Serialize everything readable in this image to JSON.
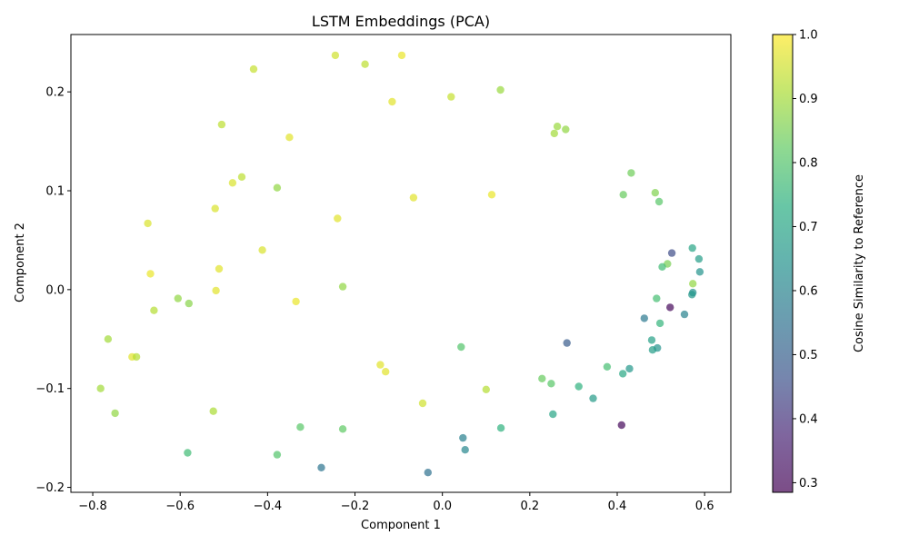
{
  "chart_data": {
    "type": "scatter",
    "title": "LSTM Embeddings (PCA)",
    "xlabel": "Component 1",
    "ylabel": "Component 2",
    "xlim": [
      -0.85,
      0.66
    ],
    "ylim": [
      -0.205,
      0.258
    ],
    "xticks": [
      -0.8,
      -0.6,
      -0.4,
      -0.2,
      0.0,
      0.2,
      0.4,
      0.6
    ],
    "xtick_labels": [
      "−0.8",
      "−0.6",
      "−0.4",
      "−0.2",
      "0.0",
      "0.2",
      "0.4",
      "0.6"
    ],
    "yticks": [
      -0.2,
      -0.1,
      0.0,
      0.1,
      0.2
    ],
    "ytick_labels": [
      "−0.2",
      "−0.1",
      "0.0",
      "0.1",
      "0.2"
    ],
    "grid": false,
    "alpha": 0.7,
    "colormap": "viridis",
    "colorbar": {
      "label": "Cosine Similarity to Reference",
      "range": [
        0.285,
        1.0
      ],
      "ticks": [
        0.3,
        0.4,
        0.5,
        0.6,
        0.7,
        0.8,
        0.9,
        1.0
      ],
      "tick_labels": [
        "0.3",
        "0.4",
        "0.5",
        "0.6",
        "0.7",
        "0.8",
        "0.9",
        "1.0"
      ]
    },
    "points": [
      {
        "x": -0.245,
        "y": 0.237,
        "c": 0.95
      },
      {
        "x": -0.093,
        "y": 0.237,
        "c": 0.98
      },
      {
        "x": -0.432,
        "y": 0.223,
        "c": 0.94
      },
      {
        "x": -0.177,
        "y": 0.228,
        "c": 0.93
      },
      {
        "x": 0.02,
        "y": 0.195,
        "c": 0.94
      },
      {
        "x": 0.133,
        "y": 0.202,
        "c": 0.89
      },
      {
        "x": -0.115,
        "y": 0.19,
        "c": 0.97
      },
      {
        "x": -0.505,
        "y": 0.167,
        "c": 0.93
      },
      {
        "x": -0.35,
        "y": 0.154,
        "c": 0.97
      },
      {
        "x": 0.263,
        "y": 0.165,
        "c": 0.89
      },
      {
        "x": 0.282,
        "y": 0.162,
        "c": 0.88
      },
      {
        "x": 0.256,
        "y": 0.158,
        "c": 0.9
      },
      {
        "x": -0.459,
        "y": 0.114,
        "c": 0.93
      },
      {
        "x": -0.48,
        "y": 0.108,
        "c": 0.96
      },
      {
        "x": -0.378,
        "y": 0.103,
        "c": 0.88
      },
      {
        "x": 0.432,
        "y": 0.118,
        "c": 0.84
      },
      {
        "x": -0.066,
        "y": 0.093,
        "c": 0.97
      },
      {
        "x": 0.113,
        "y": 0.096,
        "c": 0.98
      },
      {
        "x": 0.414,
        "y": 0.096,
        "c": 0.83
      },
      {
        "x": 0.487,
        "y": 0.098,
        "c": 0.86
      },
      {
        "x": 0.496,
        "y": 0.089,
        "c": 0.81
      },
      {
        "x": -0.52,
        "y": 0.082,
        "c": 0.96
      },
      {
        "x": -0.24,
        "y": 0.072,
        "c": 0.97
      },
      {
        "x": -0.674,
        "y": 0.067,
        "c": 0.96
      },
      {
        "x": -0.412,
        "y": 0.04,
        "c": 0.96
      },
      {
        "x": 0.572,
        "y": 0.042,
        "c": 0.7
      },
      {
        "x": 0.525,
        "y": 0.037,
        "c": 0.45
      },
      {
        "x": 0.587,
        "y": 0.031,
        "c": 0.68
      },
      {
        "x": 0.515,
        "y": 0.026,
        "c": 0.85
      },
      {
        "x": 0.503,
        "y": 0.023,
        "c": 0.77
      },
      {
        "x": -0.511,
        "y": 0.021,
        "c": 0.97
      },
      {
        "x": 0.589,
        "y": 0.018,
        "c": 0.65
      },
      {
        "x": -0.668,
        "y": 0.016,
        "c": 0.98
      },
      {
        "x": 0.573,
        "y": 0.006,
        "c": 0.88
      },
      {
        "x": -0.228,
        "y": 0.003,
        "c": 0.88
      },
      {
        "x": -0.518,
        "y": -0.001,
        "c": 0.97
      },
      {
        "x": 0.573,
        "y": -0.003,
        "c": 0.64
      },
      {
        "x": 0.571,
        "y": -0.005,
        "c": 0.66
      },
      {
        "x": -0.605,
        "y": -0.009,
        "c": 0.88
      },
      {
        "x": 0.49,
        "y": -0.009,
        "c": 0.78
      },
      {
        "x": -0.335,
        "y": -0.012,
        "c": 0.98
      },
      {
        "x": -0.58,
        "y": -0.014,
        "c": 0.87
      },
      {
        "x": 0.521,
        "y": -0.018,
        "c": 0.3
      },
      {
        "x": -0.66,
        "y": -0.021,
        "c": 0.92
      },
      {
        "x": 0.554,
        "y": -0.025,
        "c": 0.6
      },
      {
        "x": 0.462,
        "y": -0.029,
        "c": 0.57
      },
      {
        "x": 0.498,
        "y": -0.034,
        "c": 0.75
      },
      {
        "x": -0.765,
        "y": -0.05,
        "c": 0.9
      },
      {
        "x": 0.479,
        "y": -0.051,
        "c": 0.69
      },
      {
        "x": 0.285,
        "y": -0.054,
        "c": 0.49
      },
      {
        "x": 0.043,
        "y": -0.058,
        "c": 0.8
      },
      {
        "x": 0.492,
        "y": -0.059,
        "c": 0.65
      },
      {
        "x": 0.481,
        "y": -0.061,
        "c": 0.68
      },
      {
        "x": -0.71,
        "y": -0.068,
        "c": 0.97
      },
      {
        "x": -0.7,
        "y": -0.068,
        "c": 0.92
      },
      {
        "x": -0.142,
        "y": -0.076,
        "c": 0.97
      },
      {
        "x": 0.377,
        "y": -0.078,
        "c": 0.78
      },
      {
        "x": 0.428,
        "y": -0.08,
        "c": 0.66
      },
      {
        "x": -0.13,
        "y": -0.083,
        "c": 0.97
      },
      {
        "x": 0.413,
        "y": -0.085,
        "c": 0.71
      },
      {
        "x": 0.228,
        "y": -0.09,
        "c": 0.83
      },
      {
        "x": 0.249,
        "y": -0.095,
        "c": 0.81
      },
      {
        "x": 0.312,
        "y": -0.098,
        "c": 0.74
      },
      {
        "x": -0.782,
        "y": -0.1,
        "c": 0.9
      },
      {
        "x": 0.1,
        "y": -0.101,
        "c": 0.92
      },
      {
        "x": 0.345,
        "y": -0.11,
        "c": 0.67
      },
      {
        "x": -0.045,
        "y": -0.115,
        "c": 0.95
      },
      {
        "x": -0.524,
        "y": -0.123,
        "c": 0.91
      },
      {
        "x": -0.749,
        "y": -0.125,
        "c": 0.88
      },
      {
        "x": 0.253,
        "y": -0.126,
        "c": 0.7
      },
      {
        "x": 0.41,
        "y": -0.137,
        "c": 0.3
      },
      {
        "x": -0.325,
        "y": -0.139,
        "c": 0.81
      },
      {
        "x": 0.134,
        "y": -0.14,
        "c": 0.74
      },
      {
        "x": -0.228,
        "y": -0.141,
        "c": 0.82
      },
      {
        "x": 0.047,
        "y": -0.15,
        "c": 0.59
      },
      {
        "x": 0.052,
        "y": -0.162,
        "c": 0.61
      },
      {
        "x": -0.583,
        "y": -0.165,
        "c": 0.77
      },
      {
        "x": -0.378,
        "y": -0.167,
        "c": 0.8
      },
      {
        "x": -0.277,
        "y": -0.18,
        "c": 0.56
      },
      {
        "x": -0.033,
        "y": -0.185,
        "c": 0.55
      }
    ]
  }
}
